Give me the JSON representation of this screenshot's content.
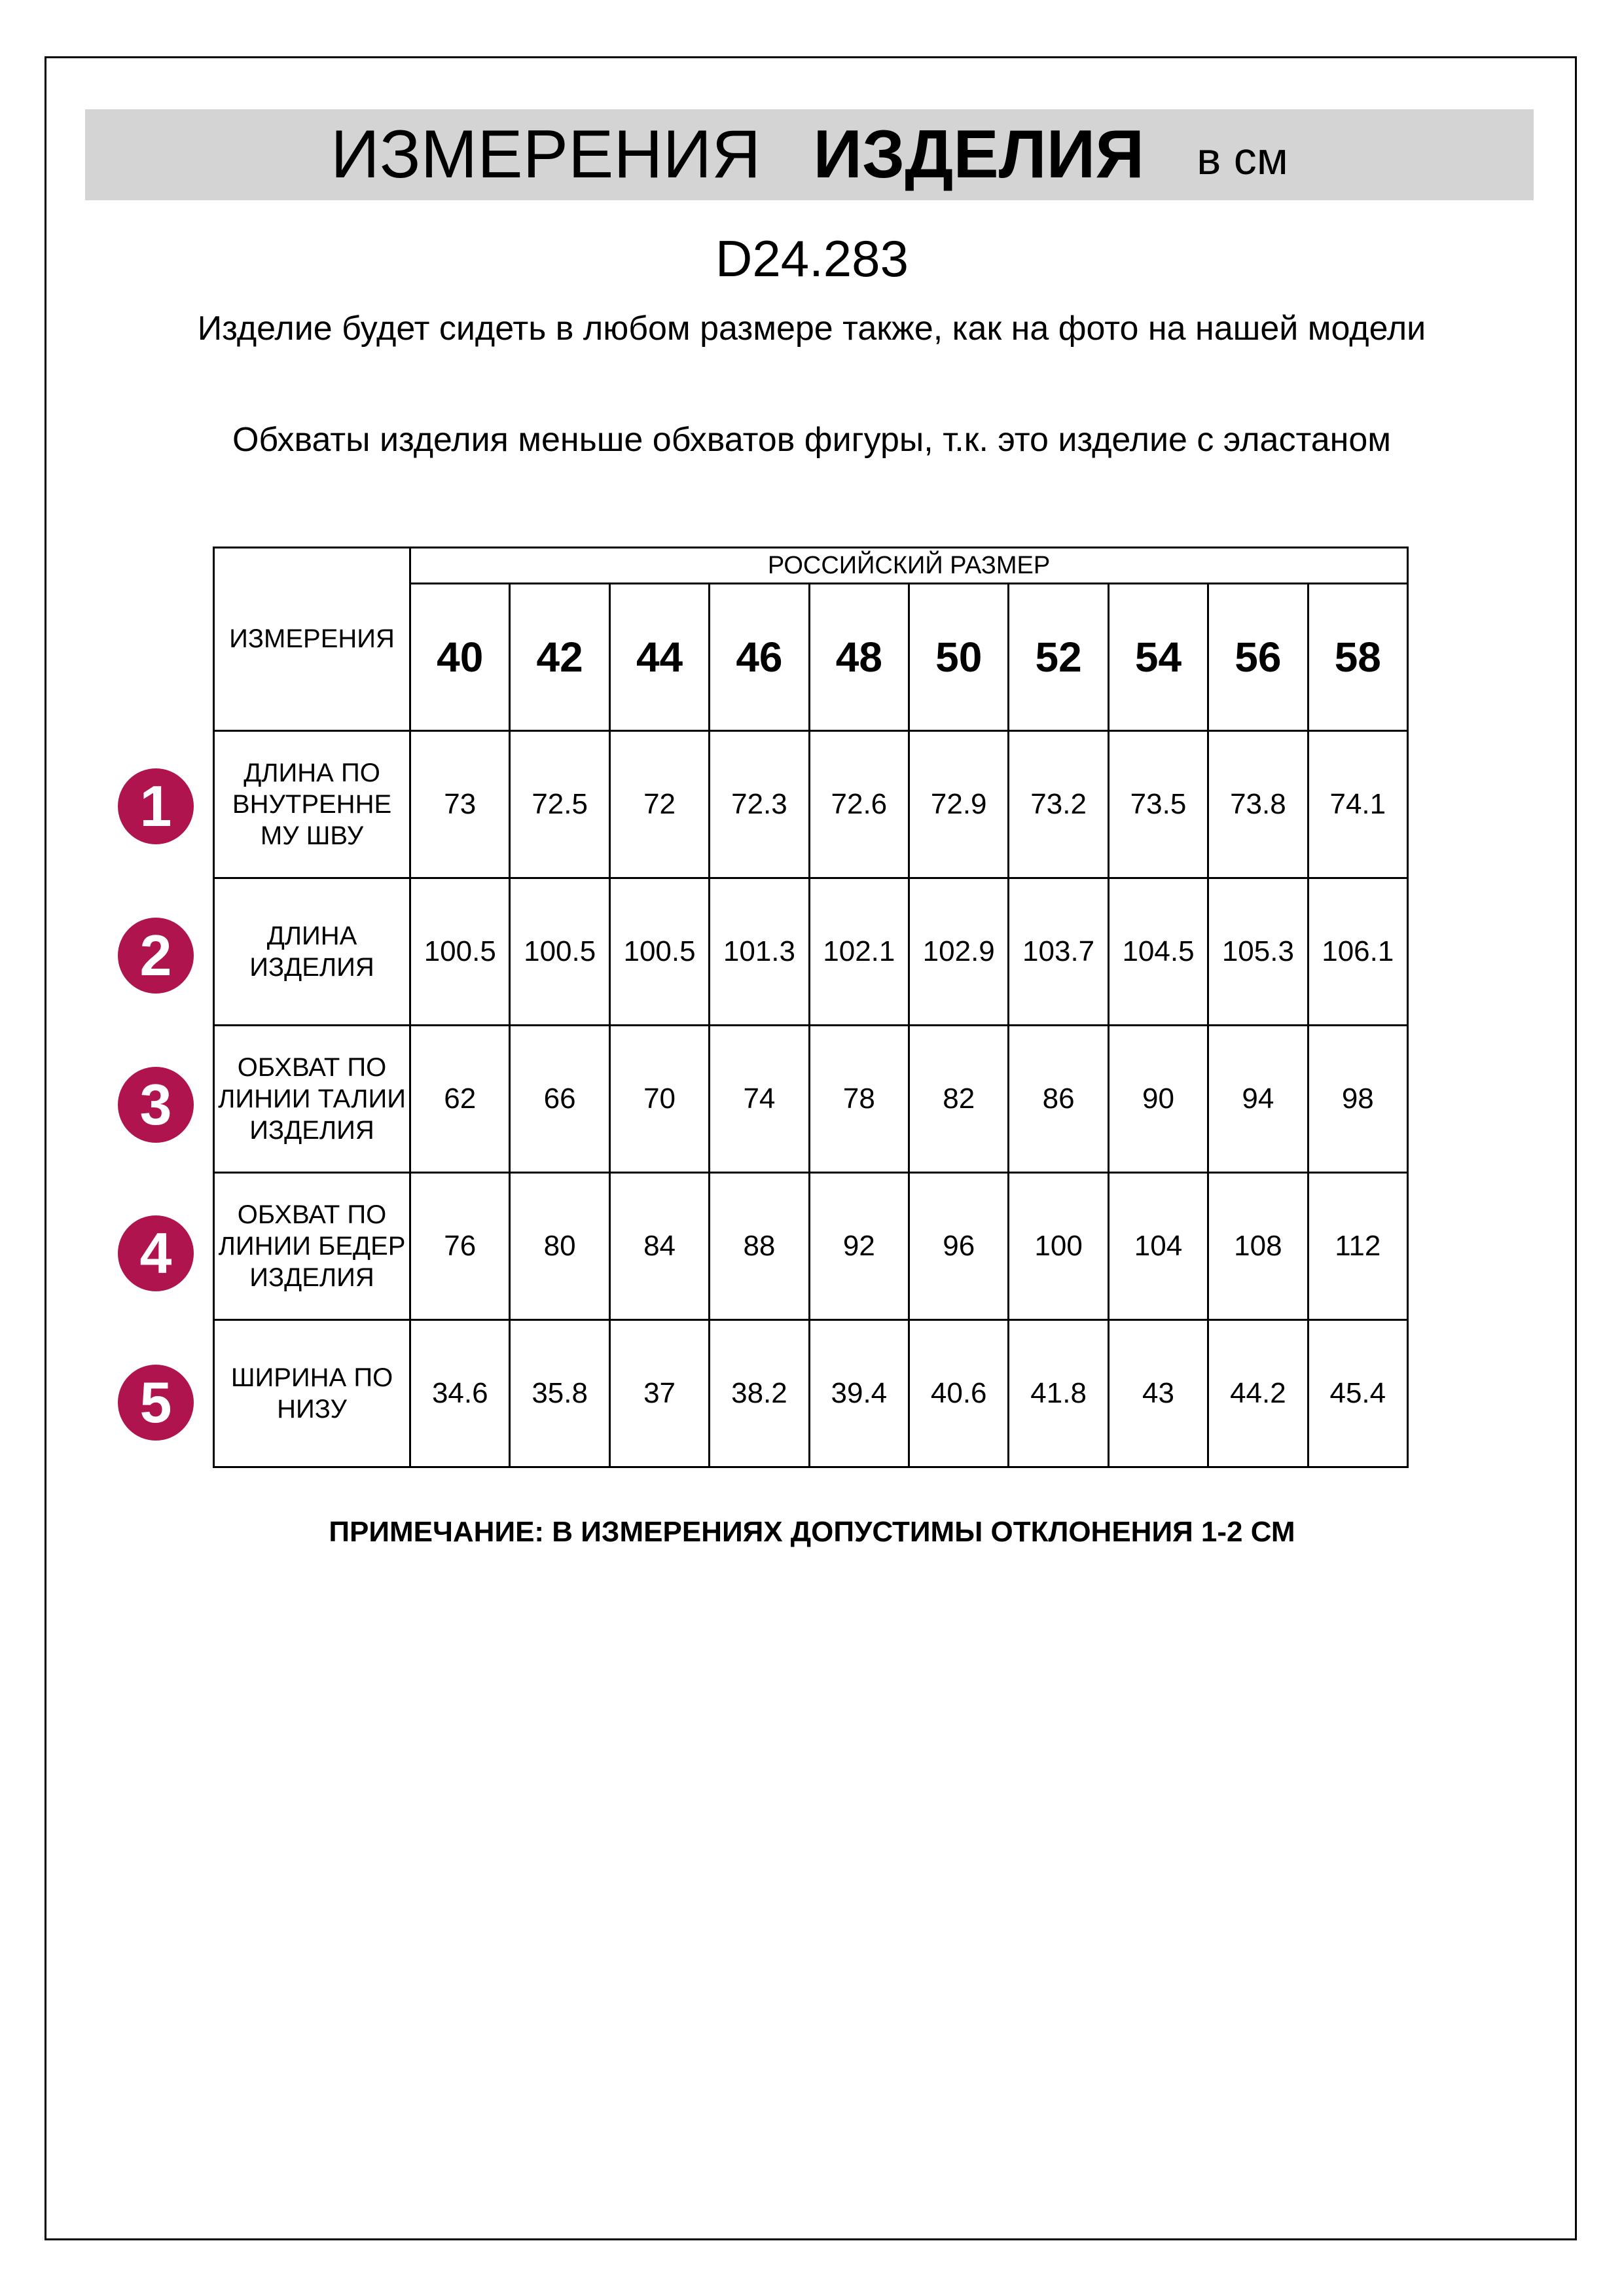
{
  "header": {
    "title_regular": "ИЗМЕРЕНИЯ",
    "title_bold": "ИЗДЕЛИЯ",
    "unit": "в см"
  },
  "product_code": "D24.283",
  "notes_top": [
    "Изделие будет сидеть в любом размере также, как на фото на нашей модели",
    "Обхваты изделия меньше обхватов фигуры, т.к. это изделие с эластаном"
  ],
  "accent_color": "#b0144f",
  "table": {
    "corner_label": "ИЗМЕРЕНИЯ",
    "group_label": "РОССИЙСКИЙ РАЗМЕР",
    "sizes": [
      "40",
      "42",
      "44",
      "46",
      "48",
      "50",
      "52",
      "54",
      "56",
      "58"
    ],
    "rows": [
      {
        "num": "1",
        "label": "ДЛИНА ПО ВНУТРЕННЕ МУ ШВУ",
        "values": [
          "73",
          "72.5",
          "72",
          "72.3",
          "72.6",
          "72.9",
          "73.2",
          "73.5",
          "73.8",
          "74.1"
        ]
      },
      {
        "num": "2",
        "label": "ДЛИНА ИЗДЕЛИЯ",
        "values": [
          "100.5",
          "100.5",
          "100.5",
          "101.3",
          "102.1",
          "102.9",
          "103.7",
          "104.5",
          "105.3",
          "106.1"
        ]
      },
      {
        "num": "3",
        "label": "ОБХВАТ ПО ЛИНИИ ТАЛИИ ИЗДЕЛИЯ",
        "values": [
          "62",
          "66",
          "70",
          "74",
          "78",
          "82",
          "86",
          "90",
          "94",
          "98"
        ]
      },
      {
        "num": "4",
        "label": "ОБХВАТ ПО ЛИНИИ БЕДЕР ИЗДЕЛИЯ",
        "values": [
          "76",
          "80",
          "84",
          "88",
          "92",
          "96",
          "100",
          "104",
          "108",
          "112"
        ]
      },
      {
        "num": "5",
        "label": "ШИРИНА ПО НИЗУ",
        "values": [
          "34.6",
          "35.8",
          "37",
          "38.2",
          "39.4",
          "40.6",
          "41.8",
          "43",
          "44.2",
          "45.4"
        ]
      }
    ]
  },
  "footnote": "ПРИМЕЧАНИЕ: В ИЗМЕРЕНИЯХ ДОПУСТИМЫ ОТКЛОНЕНИЯ 1-2 СМ"
}
